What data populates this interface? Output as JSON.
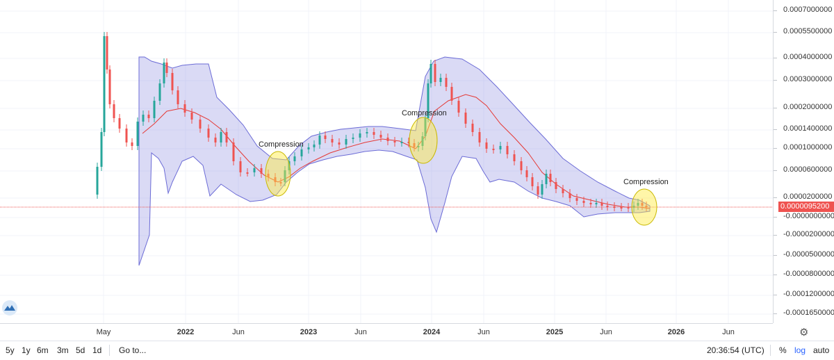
{
  "price_axis": {
    "ticks": [
      "0.0007000000",
      "0.0005500000",
      "0.0004000000",
      "0.0003000000",
      "0.0002000000",
      "0.0001400000",
      "0.0001000000",
      "0.0000600000",
      "0.0000200000",
      "-0.0000000000",
      "-0.0000200000",
      "-0.0000500000",
      "-0.0000800000",
      "-0.0001200000",
      "-0.0001650000"
    ],
    "current_price": "0.0000095200"
  },
  "time_axis": {
    "labels": [
      {
        "text": "May",
        "year": false
      },
      {
        "text": "2022",
        "year": true
      },
      {
        "text": "Jun",
        "year": false
      },
      {
        "text": "2023",
        "year": true
      },
      {
        "text": "Jun",
        "year": false
      },
      {
        "text": "2024",
        "year": true
      },
      {
        "text": "Jun",
        "year": false
      },
      {
        "text": "2025",
        "year": true
      },
      {
        "text": "Jun",
        "year": false
      },
      {
        "text": "2026",
        "year": true
      },
      {
        "text": "Jun",
        "year": false
      }
    ]
  },
  "annotations": [
    "Compression",
    "Compression",
    "Compression"
  ],
  "toolbar": {
    "ranges": [
      "5y",
      "1y",
      "6m",
      "3m",
      "5d",
      "1d"
    ],
    "goto": "Go to...",
    "time": "20:36:54 (UTC)",
    "percent": "%",
    "log": "log",
    "auto": "auto"
  },
  "icons": {
    "settings": "gear-icon",
    "logo": "tradingview-logo-icon"
  },
  "colors": {
    "band_fill": "#c9c9ee",
    "band_line": "#6b6bd6",
    "basis": "#e53935",
    "up": "#26a69a",
    "down": "#ef5350",
    "highlight": "#ffec3d",
    "accent": "#2962ff"
  },
  "chart_data": {
    "type": "candlestick",
    "scale": "log",
    "indicator": "bollinger-bands",
    "last_price": 9.52e-06
  }
}
